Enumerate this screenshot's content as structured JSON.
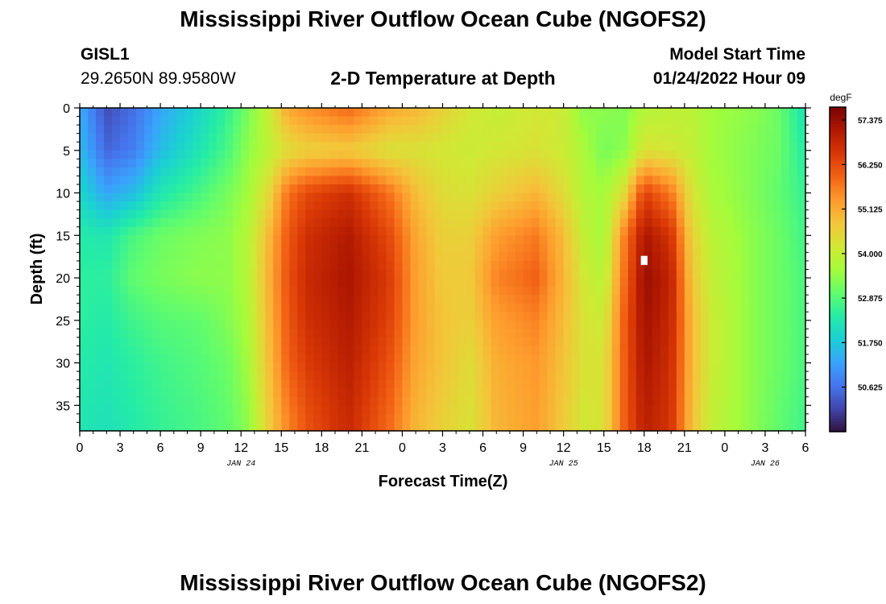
{
  "page": {
    "title": "Mississippi River Outflow Ocean Cube (NGOFS2)",
    "title_repeat": "Mississippi River Outflow Ocean Cube (NGOFS2)"
  },
  "station": {
    "id": "GISL1",
    "coords": "29.2650N  89.9580W"
  },
  "plot_title": "2-D Temperature at Depth",
  "model": {
    "label": "Model Start Time",
    "start": "01/24/2022 Hour 09"
  },
  "chart_data": {
    "type": "heatmap",
    "title": "2-D Temperature at Depth",
    "xlabel": "Forecast Time(Z)",
    "ylabel": "Depth (ft)",
    "x_unit": "hours since 01/24/2022 00Z",
    "xlim": [
      0,
      54
    ],
    "ylim": [
      38,
      0
    ],
    "x_ticks": [
      0,
      3,
      6,
      9,
      12,
      15,
      18,
      21,
      24,
      27,
      30,
      33,
      36,
      39,
      42,
      45,
      48,
      51,
      54
    ],
    "x_tick_labels": [
      "0",
      "3",
      "6",
      "9",
      "12",
      "15",
      "18",
      "21",
      "0",
      "3",
      "6",
      "9",
      "12",
      "15",
      "18",
      "21",
      "0",
      "3",
      "6"
    ],
    "y_ticks": [
      0,
      5,
      10,
      15,
      20,
      25,
      30,
      35
    ],
    "y_tick_labels": [
      "0",
      "5",
      "10",
      "15",
      "20",
      "25",
      "30",
      "35"
    ],
    "date_labels": [
      {
        "label": "JAN 24",
        "x": 12
      },
      {
        "label": "JAN 25",
        "x": 36
      },
      {
        "label": "JAN 26",
        "x": 51
      }
    ],
    "colorbar": {
      "unit": "degF",
      "min": 49.5,
      "max": 57.7,
      "tick_values": [
        50.625,
        51.75,
        52.875,
        54.0,
        55.125,
        56.25,
        57.375
      ],
      "tick_labels": [
        "50.625",
        "51.750",
        "52.875",
        "54.000",
        "55.125",
        "56.250",
        "57.375"
      ],
      "colors": [
        "#30123b",
        "#4145ab",
        "#4675ed",
        "#39a2fc",
        "#1bcfd4",
        "#24eca6",
        "#61fc6c",
        "#a4fc3b",
        "#d1e834",
        "#f3c63a",
        "#fe9b2d",
        "#f36315",
        "#d93806",
        "#b11901",
        "#7a0403"
      ]
    },
    "temperature_profiles": {
      "depth_ft": [
        0,
        5,
        10,
        15,
        20,
        25,
        30,
        37
      ],
      "columns": [
        {
          "hour": 0,
          "values": [
            51.4,
            51.6,
            52.0,
            52.4,
            52.5,
            52.5,
            52.4,
            52.3
          ]
        },
        {
          "hour": 2,
          "values": [
            50.2,
            50.5,
            51.3,
            52.3,
            52.5,
            52.4,
            52.3,
            52.2
          ]
        },
        {
          "hour": 4,
          "values": [
            50.6,
            50.8,
            51.6,
            52.8,
            53.0,
            52.7,
            52.5,
            52.4
          ]
        },
        {
          "hour": 6,
          "values": [
            51.3,
            51.6,
            52.3,
            53.1,
            53.2,
            52.9,
            52.7,
            52.6
          ]
        },
        {
          "hour": 9,
          "values": [
            52.0,
            52.3,
            52.8,
            53.3,
            53.4,
            53.0,
            52.9,
            52.8
          ]
        },
        {
          "hour": 11,
          "values": [
            52.6,
            52.8,
            53.2,
            53.4,
            53.4,
            53.3,
            53.1,
            53.0
          ]
        },
        {
          "hour": 12.5,
          "values": [
            53.2,
            53.4,
            53.6,
            53.8,
            53.8,
            53.7,
            53.6,
            53.4
          ]
        },
        {
          "hour": 14,
          "values": [
            54.0,
            53.9,
            54.4,
            54.9,
            55.0,
            54.9,
            54.8,
            54.6
          ]
        },
        {
          "hour": 15.5,
          "values": [
            55.2,
            54.4,
            55.8,
            56.1,
            56.2,
            56.1,
            56.0,
            55.6
          ]
        },
        {
          "hour": 17,
          "values": [
            55.5,
            54.6,
            56.3,
            56.7,
            56.8,
            56.7,
            56.5,
            56.2
          ]
        },
        {
          "hour": 20,
          "values": [
            55.9,
            54.7,
            56.7,
            57.1,
            57.2,
            57.1,
            57.0,
            56.8
          ]
        },
        {
          "hour": 23,
          "values": [
            55.2,
            54.3,
            55.8,
            56.3,
            56.5,
            56.4,
            56.2,
            55.9
          ]
        },
        {
          "hour": 25,
          "values": [
            55.0,
            54.3,
            54.9,
            55.2,
            55.3,
            55.3,
            55.2,
            55.0
          ]
        },
        {
          "hour": 27,
          "values": [
            54.6,
            54.2,
            54.4,
            54.6,
            54.7,
            54.8,
            54.8,
            54.6
          ]
        },
        {
          "hour": 29,
          "values": [
            54.2,
            54.1,
            54.3,
            54.6,
            54.7,
            54.6,
            54.4,
            54.3
          ]
        },
        {
          "hour": 31,
          "values": [
            54.0,
            54.2,
            54.6,
            55.3,
            55.6,
            55.3,
            55.1,
            55.0
          ]
        },
        {
          "hour": 34,
          "values": [
            54.2,
            54.3,
            55.0,
            55.7,
            56.0,
            55.6,
            55.4,
            55.3
          ]
        },
        {
          "hour": 36,
          "values": [
            54.1,
            54.1,
            54.4,
            54.9,
            55.0,
            54.9,
            54.8,
            54.7
          ]
        },
        {
          "hour": 37.5,
          "values": [
            53.4,
            53.7,
            53.8,
            54.0,
            54.2,
            54.3,
            54.3,
            54.2
          ]
        },
        {
          "hour": 39,
          "values": [
            53.4,
            53.2,
            53.6,
            53.6,
            53.8,
            54.1,
            54.3,
            54.3
          ]
        },
        {
          "hour": 40.5,
          "values": [
            53.3,
            53.4,
            54.4,
            55.6,
            55.8,
            56.0,
            56.0,
            56.0
          ]
        },
        {
          "hour": 42,
          "values": [
            53.8,
            54.3,
            56.4,
            57.2,
            57.4,
            57.3,
            57.2,
            57.0
          ]
        },
        {
          "hour": 44,
          "values": [
            53.9,
            54.2,
            55.7,
            56.6,
            56.9,
            56.8,
            56.7,
            56.6
          ]
        },
        {
          "hour": 45.5,
          "values": [
            53.9,
            54.0,
            54.3,
            54.6,
            54.8,
            55.0,
            55.0,
            54.9
          ]
        },
        {
          "hour": 47,
          "values": [
            53.6,
            53.6,
            53.7,
            53.9,
            54.0,
            54.1,
            54.1,
            54.0
          ]
        },
        {
          "hour": 50,
          "values": [
            53.4,
            53.3,
            53.3,
            53.4,
            53.4,
            53.4,
            53.4,
            53.4
          ]
        },
        {
          "hour": 52,
          "values": [
            53.1,
            53.1,
            53.0,
            53.1,
            53.1,
            53.1,
            53.1,
            53.0
          ]
        },
        {
          "hour": 54,
          "values": [
            52.2,
            52.4,
            52.6,
            52.7,
            52.8,
            52.8,
            52.8,
            52.7
          ]
        }
      ]
    },
    "missing_value_marker": {
      "hour": 42,
      "depth_ft": 18
    }
  }
}
